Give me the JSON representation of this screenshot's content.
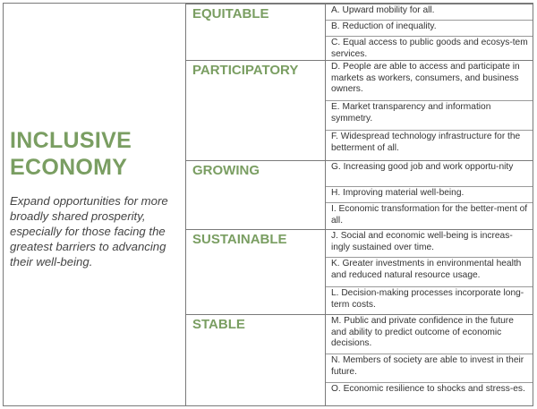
{
  "left": {
    "title": "INCLUSIVE\nECONOMY",
    "description": "Expand opportunities for more broadly shared prosperity, especially for those facing the greatest barriers to advancing their well-being."
  },
  "sections": [
    {
      "label": "EQUITABLE",
      "items": [
        "A. Upward mobility for all.",
        "B. Reduction of inequality.",
        "C. Equal access to public goods and ecosys-tem services."
      ]
    },
    {
      "label": "PARTICIPATORY",
      "items": [
        "D. People are able to access and participate in markets as workers, consumers, and business owners.",
        "E. Market transparency and information symmetry.",
        "F. Widespread technology infrastructure for the betterment of all."
      ]
    },
    {
      "label": "GROWING",
      "items": [
        "G. Increasing good job and work opportu-nity",
        "H. Improving material well-being.",
        "I. Economic transformation for the better-ment of all."
      ]
    },
    {
      "label": "SUSTAINABLE",
      "items": [
        "J. Social and economic well-being is increas-ingly sustained over time.",
        "K. Greater investments in environmental health and reduced natural resource usage.",
        "L. Decision-making processes incorporate long-term costs."
      ]
    },
    {
      "label": "STABLE",
      "items": [
        "M. Public and private confidence in the future and ability to predict outcome of economic decisions.",
        "N. Members of society are able to invest in their future.",
        "O. Economic resilience to shocks and stress-es."
      ]
    }
  ]
}
